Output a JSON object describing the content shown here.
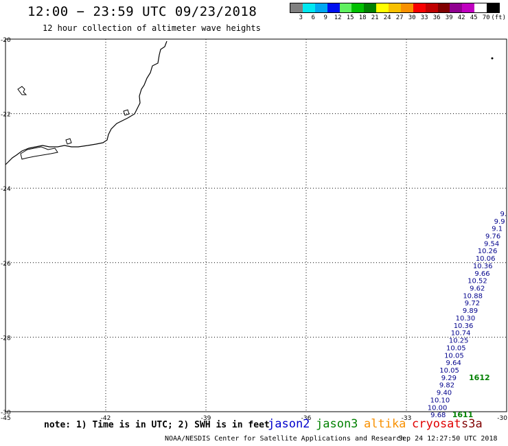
{
  "header": {
    "title": "12:00 − 23:59 UTC 09/23/2018",
    "subtitle": "12 hour collection of altimeter wave heights"
  },
  "legend": {
    "colors": [
      "#808080",
      "#00e8f0",
      "#00a8f0",
      "#0010f0",
      "#60f060",
      "#00c000",
      "#008000",
      "#ffff00",
      "#f8c000",
      "#f89000",
      "#f80000",
      "#c00000",
      "#800000",
      "#900090",
      "#c000c0",
      "#ffffff",
      "#000000"
    ],
    "labels": [
      "3",
      "6",
      "9",
      "12",
      "15",
      "18",
      "21",
      "24",
      "27",
      "30",
      "33",
      "36",
      "39",
      "42",
      "45",
      "70",
      "(ft)"
    ]
  },
  "map": {
    "lat_labels": [
      "-20",
      "-22",
      "-24",
      "-26",
      "-28",
      "-30"
    ],
    "lon_labels": [
      "-45",
      "-42",
      "-39",
      "-36",
      "-33",
      "-30"
    ],
    "grid_lats": [
      -20,
      -22,
      -24,
      -26,
      -28,
      -30
    ],
    "grid_lons": [
      -45,
      -42,
      -39,
      -36,
      -33,
      -30
    ],
    "extent": {
      "lon_min": -45,
      "lon_max": -30,
      "lat_min": -30,
      "lat_max": -20
    },
    "wave_color": "#00008b",
    "wave_heights": [
      {
        "lat": -24.75,
        "lon": -30.0,
        "label": "9."
      },
      {
        "lat": -24.95,
        "lon": -30.05,
        "label": "9.9"
      },
      {
        "lat": -25.15,
        "lon": -30.12,
        "label": "9.1"
      },
      {
        "lat": -25.35,
        "lon": -30.18,
        "label": "9.76"
      },
      {
        "lat": -25.55,
        "lon": -30.22,
        "label": "9.54"
      },
      {
        "lat": -25.75,
        "lon": -30.28,
        "label": "10.26"
      },
      {
        "lat": -25.95,
        "lon": -30.34,
        "label": "10.06"
      },
      {
        "lat": -26.15,
        "lon": -30.42,
        "label": "10.36"
      },
      {
        "lat": -26.35,
        "lon": -30.5,
        "label": "9.66"
      },
      {
        "lat": -26.55,
        "lon": -30.58,
        "label": "10.52"
      },
      {
        "lat": -26.75,
        "lon": -30.65,
        "label": "9.62"
      },
      {
        "lat": -26.95,
        "lon": -30.72,
        "label": "10.88"
      },
      {
        "lat": -27.15,
        "lon": -30.8,
        "label": "9.72"
      },
      {
        "lat": -27.35,
        "lon": -30.86,
        "label": "9.89"
      },
      {
        "lat": -27.55,
        "lon": -30.94,
        "label": "10.30"
      },
      {
        "lat": -27.75,
        "lon": -31.0,
        "label": "10.36"
      },
      {
        "lat": -27.95,
        "lon": -31.08,
        "label": "10.74"
      },
      {
        "lat": -28.15,
        "lon": -31.14,
        "label": "10.25"
      },
      {
        "lat": -28.35,
        "lon": -31.22,
        "label": "10.05"
      },
      {
        "lat": -28.55,
        "lon": -31.28,
        "label": "10.05"
      },
      {
        "lat": -28.75,
        "lon": -31.36,
        "label": "9.64"
      },
      {
        "lat": -28.95,
        "lon": -31.42,
        "label": "10.05"
      },
      {
        "lat": -29.15,
        "lon": -31.5,
        "label": "9.29"
      },
      {
        "lat": -29.35,
        "lon": -31.56,
        "label": "9.82"
      },
      {
        "lat": -29.55,
        "lon": -31.64,
        "label": "9.40"
      },
      {
        "lat": -29.75,
        "lon": -31.7,
        "label": "10.10"
      },
      {
        "lat": -29.95,
        "lon": -31.78,
        "label": "10.00"
      },
      {
        "lat": -30.15,
        "lon": -31.82,
        "label": "9.68"
      }
    ],
    "time_marks": [
      {
        "lat": -29.15,
        "lon": -30.5,
        "label": "1612"
      },
      {
        "lat": -30.15,
        "lon": -31.0,
        "label": "1611"
      }
    ],
    "time_mark_color": "#008000"
  },
  "note": "note: 1) Time is in UTC; 2) SWH is in feet",
  "satellites": [
    {
      "name": "jason2",
      "color": "#0000cc"
    },
    {
      "name": "jason3",
      "color": "#008000"
    },
    {
      "name": "altika",
      "color": "#f89000"
    },
    {
      "name": "cryosat",
      "color": "#e00000"
    },
    {
      "name": "s3a",
      "color": "#800000"
    }
  ],
  "footer": {
    "credit": "NOAA/NESDIS Center for Satellite Applications and Research",
    "timestamp": "Sep 24 12:27:50 UTC 2018"
  }
}
